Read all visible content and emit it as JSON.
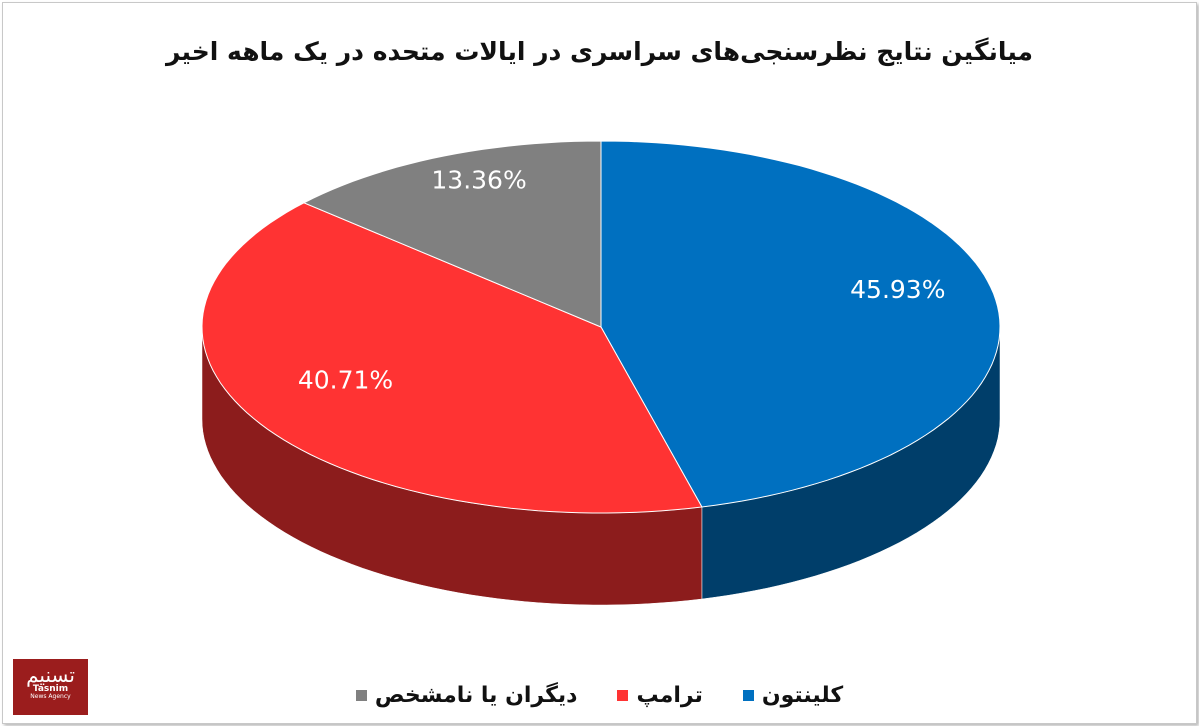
{
  "chart_data": {
    "type": "pie3d",
    "title": "میانگین نتایج نظرسنجی‌های سراسری در ایالات متحده در یک ماهه اخیر",
    "series": [
      {
        "name": "کلینتون",
        "color": "#0070c0",
        "values": [
          45.93
        ],
        "value_labels": [
          "45.93%"
        ]
      },
      {
        "name": "ترامپ",
        "color": "#ff3333",
        "values": [
          40.71
        ],
        "value_labels": [
          "40.71%"
        ]
      },
      {
        "name": "دیگران یا نامشخص",
        "color": "#808080",
        "values": [
          13.36
        ],
        "value_labels": [
          "13.36%"
        ]
      }
    ]
  },
  "logo": {
    "text": "تسنیم",
    "name": "Tasnim",
    "tagline": "News Agency"
  }
}
